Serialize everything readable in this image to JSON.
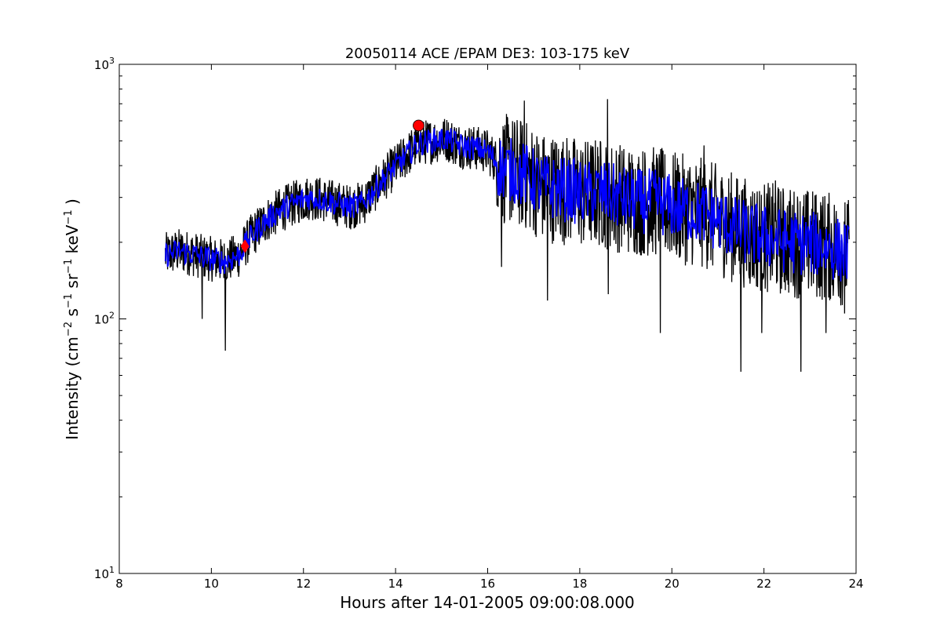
{
  "chart_data": {
    "type": "line",
    "title": "20050114 ACE /EPAM DE3: 103-175 keV",
    "xlabel": "Hours after 14-01-2005 09:00:08.000",
    "ylabel": {
      "prefix": "Intensity (cm",
      "exp1": "−2",
      "mid1": " s",
      "exp2": "−1",
      "mid2": " sr",
      "exp3": "−1",
      "mid3": " keV",
      "exp4": "−1",
      "suffix": " )"
    },
    "xlim": [
      8,
      24
    ],
    "ylim": [
      10,
      1000
    ],
    "yscale": "log",
    "x_ticks": [
      "8",
      "10",
      "12",
      "14",
      "16",
      "18",
      "20",
      "22",
      "24"
    ],
    "y_ticks": [
      {
        "base": "10",
        "exp": "1"
      },
      {
        "base": "10",
        "exp": "2"
      },
      {
        "base": "10",
        "exp": "3"
      }
    ],
    "grid": false,
    "series": [
      {
        "color": "#000000",
        "style": "raw",
        "x": [
          9.0,
          9.3,
          9.6,
          9.8,
          10.0,
          10.3,
          10.6,
          10.9,
          11.2,
          11.5,
          11.8,
          12.1,
          12.4,
          12.7,
          13.0,
          13.3,
          13.6,
          13.9,
          14.2,
          14.5,
          14.8,
          15.1,
          15.4,
          15.7,
          16.0,
          16.3,
          16.6,
          16.9,
          17.2,
          17.5,
          17.8,
          18.1,
          18.4,
          18.7,
          19.0,
          19.3,
          19.6,
          19.9,
          20.2,
          20.5,
          20.8,
          21.1,
          21.4,
          21.7,
          22.0,
          22.3,
          22.6,
          22.9,
          23.2,
          23.5,
          23.85
        ],
        "y": [
          178,
          185,
          180,
          175,
          172,
          168,
          178,
          215,
          245,
          268,
          285,
          300,
          295,
          285,
          275,
          285,
          330,
          380,
          430,
          490,
          500,
          510,
          480,
          470,
          455,
          390,
          380,
          360,
          330,
          325,
          320,
          310,
          315,
          305,
          295,
          290,
          290,
          280,
          270,
          265,
          255,
          240,
          225,
          215,
          210,
          205,
          200,
          198,
          195,
          190,
          180
        ],
        "spikes": [
          [
            9.8,
            100
          ],
          [
            10.3,
            75
          ],
          [
            16.3,
            160
          ],
          [
            16.8,
            720
          ],
          [
            17.3,
            118
          ],
          [
            18.6,
            730
          ],
          [
            18.62,
            125
          ],
          [
            19.75,
            88
          ],
          [
            20.7,
            480
          ],
          [
            21.5,
            62
          ],
          [
            21.95,
            88
          ],
          [
            22.25,
            350
          ],
          [
            22.8,
            62
          ],
          [
            23.35,
            88
          ],
          [
            23.75,
            105
          ]
        ]
      },
      {
        "color": "#0000ff",
        "style": "smoothed",
        "x": [
          9.0,
          9.3,
          9.6,
          9.8,
          10.0,
          10.3,
          10.6,
          10.9,
          11.2,
          11.5,
          11.8,
          12.1,
          12.4,
          12.7,
          13.0,
          13.3,
          13.6,
          13.9,
          14.2,
          14.5,
          14.8,
          15.1,
          15.4,
          15.7,
          16.0,
          16.3,
          16.6,
          16.9,
          17.2,
          17.5,
          17.8,
          18.1,
          18.4,
          18.7,
          19.0,
          19.3,
          19.6,
          19.9,
          20.2,
          20.5,
          20.8,
          21.1,
          21.4,
          21.7,
          22.0,
          22.3,
          22.6,
          22.9,
          23.2,
          23.5,
          23.85
        ],
        "y": [
          178,
          185,
          180,
          175,
          172,
          168,
          178,
          215,
          245,
          268,
          285,
          300,
          295,
          285,
          275,
          285,
          330,
          380,
          430,
          490,
          500,
          510,
          480,
          470,
          455,
          390,
          380,
          360,
          330,
          325,
          320,
          310,
          315,
          305,
          295,
          290,
          290,
          280,
          270,
          265,
          255,
          240,
          225,
          215,
          210,
          205,
          200,
          198,
          195,
          190,
          180
        ]
      }
    ],
    "markers": [
      {
        "shape": "diamond",
        "color": "#ff0000",
        "x": 10.73,
        "y": 193
      },
      {
        "shape": "circle",
        "color": "#ff0000",
        "x": 14.5,
        "y": 575
      }
    ]
  }
}
